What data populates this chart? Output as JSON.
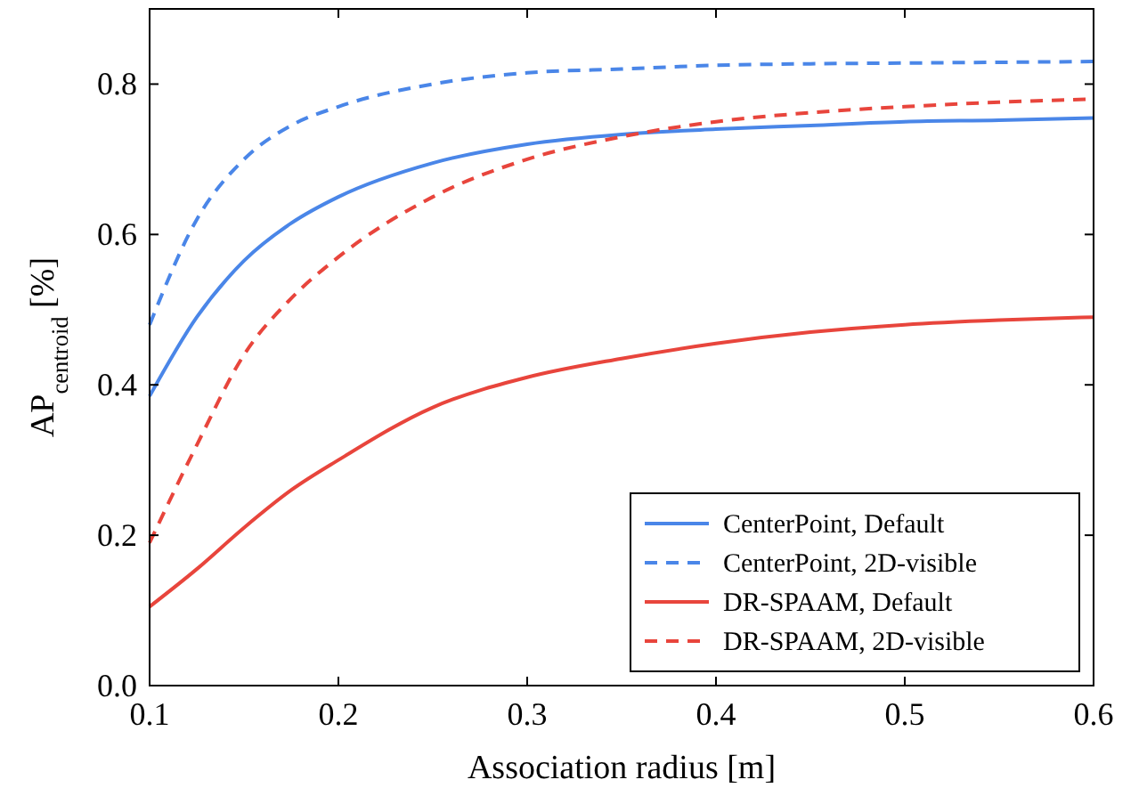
{
  "chart_data": {
    "type": "line",
    "xlabel": "Association radius [m]",
    "ylabel": "AP$_{centroid}$ [%]",
    "x": [
      0.1,
      0.125,
      0.15,
      0.175,
      0.2,
      0.25,
      0.3,
      0.35,
      0.4,
      0.45,
      0.5,
      0.55,
      0.6
    ],
    "series": [
      {
        "name": "CenterPoint, Default",
        "color": "#4a86e8",
        "line_style": "solid",
        "values": [
          0.385,
          0.49,
          0.565,
          0.615,
          0.65,
          0.695,
          0.72,
          0.733,
          0.74,
          0.745,
          0.75,
          0.752,
          0.755
        ]
      },
      {
        "name": "CenterPoint, 2D-visible",
        "color": "#4a86e8",
        "line_style": "dashed",
        "values": [
          0.48,
          0.62,
          0.7,
          0.745,
          0.77,
          0.8,
          0.815,
          0.82,
          0.825,
          0.827,
          0.828,
          0.829,
          0.83
        ]
      },
      {
        "name": "DR-SPAAM, Default",
        "color": "#e8453c",
        "line_style": "solid",
        "values": [
          0.105,
          0.155,
          0.21,
          0.26,
          0.3,
          0.37,
          0.41,
          0.435,
          0.455,
          0.47,
          0.48,
          0.486,
          0.49
        ]
      },
      {
        "name": "DR-SPAAM, 2D-visible",
        "color": "#e8453c",
        "line_style": "dashed",
        "values": [
          0.19,
          0.32,
          0.44,
          0.515,
          0.57,
          0.65,
          0.7,
          0.73,
          0.75,
          0.762,
          0.77,
          0.776,
          0.78
        ]
      }
    ],
    "xlim": [
      0.1,
      0.6
    ],
    "xticks": [
      0.1,
      0.2,
      0.3,
      0.4,
      0.5,
      0.6
    ],
    "ylim": [
      0,
      0.9
    ],
    "yticks": [
      {
        "value": 0,
        "label": "0.0"
      },
      0.2,
      0.4,
      0.6,
      0.8
    ],
    "grid": false,
    "legend": "bottom right"
  }
}
